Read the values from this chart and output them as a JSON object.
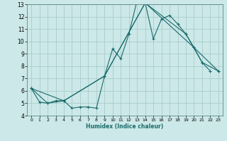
{
  "title": "",
  "xlabel": "Humidex (Indice chaleur)",
  "bg_color": "#cce8e8",
  "grid_color": "#aacccc",
  "line_color": "#1a6b6b",
  "xlim": [
    -0.5,
    23.5
  ],
  "ylim": [
    4,
    13
  ],
  "yticks": [
    4,
    5,
    6,
    7,
    8,
    9,
    10,
    11,
    12,
    13
  ],
  "xticks": [
    0,
    1,
    2,
    3,
    4,
    5,
    6,
    7,
    8,
    9,
    10,
    11,
    12,
    13,
    14,
    15,
    16,
    17,
    18,
    19,
    20,
    21,
    22,
    23
  ],
  "lines": [
    {
      "x": [
        0,
        1,
        2,
        3,
        4,
        5,
        6,
        7,
        8,
        9,
        10,
        11,
        12,
        13,
        14,
        15,
        16,
        17,
        18,
        19,
        20,
        21,
        22
      ],
      "y": [
        6.2,
        5.1,
        5.0,
        5.2,
        5.2,
        4.6,
        4.7,
        4.7,
        4.6,
        7.2,
        9.4,
        8.6,
        10.6,
        13.3,
        13.1,
        10.2,
        11.8,
        12.1,
        11.4,
        10.6,
        9.5,
        8.3,
        7.6
      ]
    },
    {
      "x": [
        0,
        2,
        4,
        9,
        14,
        19,
        21,
        23
      ],
      "y": [
        6.2,
        5.0,
        5.2,
        7.2,
        13.1,
        10.6,
        8.3,
        7.6
      ]
    },
    {
      "x": [
        0,
        4,
        9,
        14,
        20,
        23
      ],
      "y": [
        6.2,
        5.2,
        7.2,
        13.1,
        9.5,
        7.6
      ]
    }
  ]
}
